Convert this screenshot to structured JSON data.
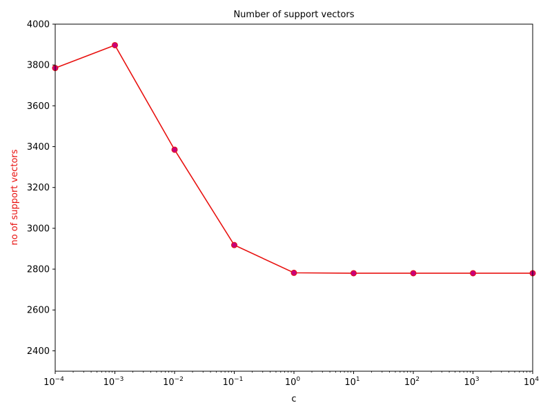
{
  "chart_data": {
    "type": "line",
    "title": "Number of support vectors",
    "xlabel": "c",
    "ylabel": "no of support vectors",
    "x_scale": "log",
    "xlim": [
      0.0001,
      10000
    ],
    "ylim": [
      2300,
      4000
    ],
    "x_ticks": [
      {
        "value": 0.0001,
        "base": "10",
        "exp": "−4"
      },
      {
        "value": 0.001,
        "base": "10",
        "exp": "−3"
      },
      {
        "value": 0.01,
        "base": "10",
        "exp": "−2"
      },
      {
        "value": 0.1,
        "base": "10",
        "exp": "−1"
      },
      {
        "value": 1,
        "base": "10",
        "exp": "0"
      },
      {
        "value": 10,
        "base": "10",
        "exp": "1"
      },
      {
        "value": 100,
        "base": "10",
        "exp": "2"
      },
      {
        "value": 1000,
        "base": "10",
        "exp": "3"
      },
      {
        "value": 10000,
        "base": "10",
        "exp": "4"
      }
    ],
    "y_ticks": [
      2400,
      2600,
      2800,
      3000,
      3200,
      3400,
      3600,
      3800,
      4000
    ],
    "grid": false,
    "series": [
      {
        "x": [
          0.0001,
          0.001,
          0.01,
          0.1,
          1,
          10,
          100,
          1000,
          10000
        ],
        "y": [
          3785,
          3897,
          3385,
          2918,
          2782,
          2780,
          2780,
          2780,
          2780
        ],
        "line_color": "#e8110f",
        "marker_color": "#c8007a"
      }
    ],
    "ylabel_color": "#e8110f"
  }
}
